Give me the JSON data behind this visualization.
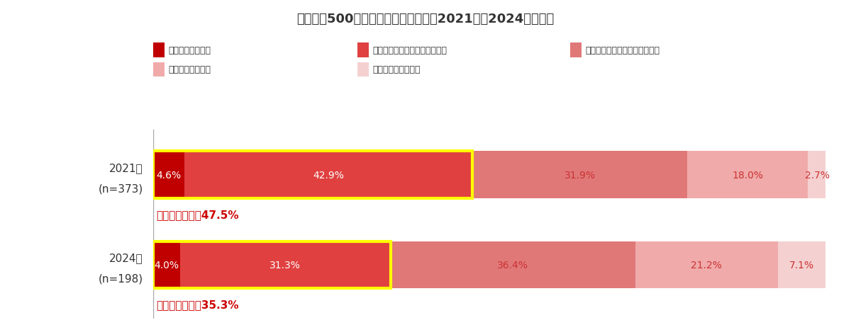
{
  "title": "世帯年収500万以上の家計のゆとり：2021年と2024年の比較",
  "rows": [
    {
      "label_line1": "2021年",
      "label_line2": "(n=373)",
      "values": [
        4.6,
        42.9,
        31.9,
        18.0,
        2.7
      ],
      "highlight_sum": 47.5,
      "highlight_label": "ゆとりがある：47.5%"
    },
    {
      "label_line1": "2024年",
      "label_line2": "(n=198)",
      "values": [
        4.0,
        31.3,
        36.4,
        21.2,
        7.1
      ],
      "highlight_sum": 35.3,
      "highlight_label": "ゆとりがある：35.3%"
    }
  ],
  "colors": [
    "#c00000",
    "#e04040",
    "#e07878",
    "#f0aaaa",
    "#f5d0d0"
  ],
  "legend_labels": [
    "十分ゆとりがある",
    "どちらかといえばゆとりがある",
    "どちらかといえばゆとりがない",
    "全くゆとりがない",
    "どちらともいえない"
  ],
  "highlight_border_color": "#ffff00",
  "annotation_color": "#cc0000",
  "bar_height": 0.52,
  "figsize": [
    12.0,
    4.6
  ],
  "dpi": 100,
  "background_color": "#ffffff",
  "text_color": "#333333",
  "title_fontsize": 13,
  "legend_fontsize": 9,
  "bar_label_fontsize": 10,
  "annotation_fontsize": 11,
  "ylabel_fontsize": 11
}
